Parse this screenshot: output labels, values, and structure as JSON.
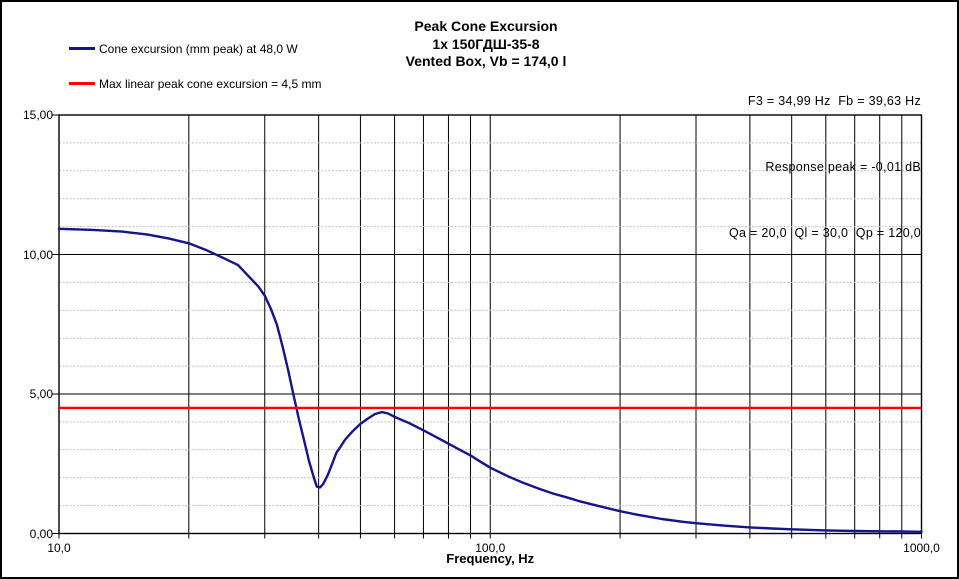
{
  "page": {
    "background": "#ffffff",
    "frame_color": "#000000"
  },
  "title": {
    "line1": "Peak Cone Excursion",
    "line2": "1x 150ГДШ-35-8",
    "line3": "Vented Box, Vb = 174,0 l"
  },
  "legend": {
    "items": [
      {
        "label": "Cone excursion (mm peak) at 48,0 W",
        "color": "#14148c"
      },
      {
        "label": "Max linear peak cone excursion = 4,5 mm",
        "color": "#ff0000"
      }
    ]
  },
  "stats": {
    "line1": "F3 = 34,99 Hz  Fb = 39,63 Hz",
    "line2": "Response peak = -0,01 dB",
    "line3": "Qa = 20,0  Ql = 30,0  Qp = 120,0"
  },
  "chart_data": {
    "type": "line",
    "title": "Peak Cone Excursion",
    "x_axis_label": "Frequency, Hz",
    "ylabel": "",
    "x_scale": "log",
    "x_range": [
      10,
      1000
    ],
    "y_range": [
      0,
      15
    ],
    "y_minor_step": 1,
    "y_major_values": [
      5,
      10
    ],
    "grid": true,
    "grid_color_vertical": "#000000",
    "grid_color_major": "#000000",
    "grid_color_minor": "#c0c0c0",
    "x_tick_labels": [
      {
        "value": 10,
        "label": "10,0"
      },
      {
        "value": 100,
        "label": "100,0"
      },
      {
        "value": 1000,
        "label": "1000,0"
      }
    ],
    "y_tick_labels": [
      {
        "value": 0,
        "label": "0,00"
      },
      {
        "value": 5,
        "label": "5,00"
      },
      {
        "value": 10,
        "label": "10,00"
      },
      {
        "value": 15,
        "label": "15,00"
      }
    ],
    "series": [
      {
        "name": "Cone excursion (mm peak) at 48,0 W",
        "type": "curve",
        "color": "#14148c",
        "width": 2.4,
        "points": [
          [
            10,
            10.92
          ],
          [
            12,
            10.88
          ],
          [
            14,
            10.82
          ],
          [
            16,
            10.72
          ],
          [
            18,
            10.57
          ],
          [
            20,
            10.4
          ],
          [
            22,
            10.15
          ],
          [
            24,
            9.88
          ],
          [
            26,
            9.62
          ],
          [
            28,
            9.1
          ],
          [
            29,
            8.85
          ],
          [
            30,
            8.52
          ],
          [
            31,
            8.05
          ],
          [
            32,
            7.5
          ],
          [
            33,
            6.7
          ],
          [
            34,
            5.85
          ],
          [
            35,
            4.95
          ],
          [
            36,
            4.1
          ],
          [
            37,
            3.35
          ],
          [
            38,
            2.6
          ],
          [
            39,
            2.0
          ],
          [
            39.6,
            1.68
          ],
          [
            40.3,
            1.65
          ],
          [
            41,
            1.78
          ],
          [
            42,
            2.1
          ],
          [
            43,
            2.5
          ],
          [
            44,
            2.9
          ],
          [
            45,
            3.12
          ],
          [
            46,
            3.35
          ],
          [
            48,
            3.67
          ],
          [
            50,
            3.93
          ],
          [
            52,
            4.12
          ],
          [
            54,
            4.28
          ],
          [
            56,
            4.35
          ],
          [
            58,
            4.3
          ],
          [
            60,
            4.18
          ],
          [
            65,
            3.95
          ],
          [
            70,
            3.7
          ],
          [
            75,
            3.45
          ],
          [
            80,
            3.22
          ],
          [
            85,
            3.0
          ],
          [
            90,
            2.8
          ],
          [
            95,
            2.57
          ],
          [
            100,
            2.36
          ],
          [
            110,
            2.05
          ],
          [
            120,
            1.8
          ],
          [
            130,
            1.6
          ],
          [
            140,
            1.43
          ],
          [
            150,
            1.3
          ],
          [
            160,
            1.17
          ],
          [
            180,
            0.97
          ],
          [
            200,
            0.8
          ],
          [
            220,
            0.67
          ],
          [
            250,
            0.52
          ],
          [
            280,
            0.42
          ],
          [
            300,
            0.37
          ],
          [
            350,
            0.28
          ],
          [
            400,
            0.22
          ],
          [
            450,
            0.18
          ],
          [
            500,
            0.15
          ],
          [
            600,
            0.11
          ],
          [
            700,
            0.09
          ],
          [
            800,
            0.08
          ],
          [
            900,
            0.07
          ],
          [
            1000,
            0.06
          ]
        ]
      },
      {
        "name": "Max linear peak cone excursion",
        "type": "hline",
        "color": "#ff0000",
        "width": 2.4,
        "value": 4.5
      }
    ]
  }
}
